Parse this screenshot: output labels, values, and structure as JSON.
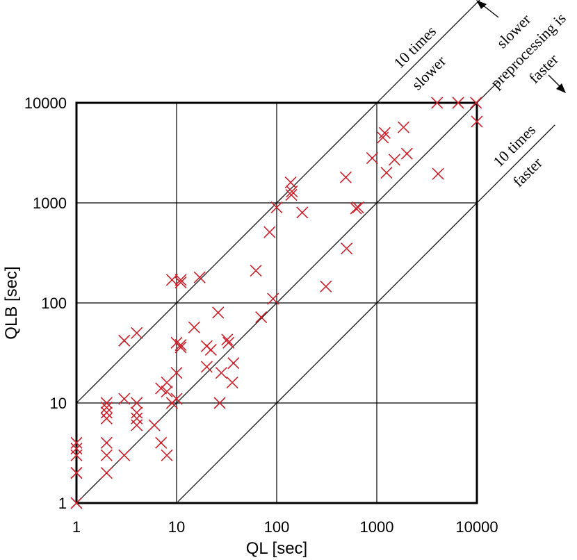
{
  "chart_data": {
    "type": "scatter",
    "title": "",
    "xlabel": "QL [sec]",
    "ylabel": "QLB [sec]",
    "xscale": "log",
    "yscale": "log",
    "xlim": [
      1,
      10000
    ],
    "ylim": [
      1,
      10000
    ],
    "xticks": [
      "1",
      "10",
      "100",
      "1000",
      "10000"
    ],
    "yticks": [
      "1",
      "10",
      "100",
      "1000",
      "10000"
    ],
    "grid": true,
    "marker": "x",
    "marker_color": "#cc1f2a",
    "reference_lines": [
      {
        "factor": 10,
        "labels": [
          "10 times",
          "slower"
        ]
      },
      {
        "factor": 1,
        "labels": []
      },
      {
        "factor": 0.1,
        "labels": [
          "10 times",
          "faster"
        ]
      }
    ],
    "annotation": {
      "upper": "slower",
      "middle": "preprocessing is",
      "lower": "faster"
    },
    "points": [
      [
        1,
        1
      ],
      [
        1,
        2
      ],
      [
        1,
        2
      ],
      [
        1,
        3
      ],
      [
        1,
        3.5
      ],
      [
        1,
        4
      ],
      [
        2,
        2
      ],
      [
        2,
        3
      ],
      [
        2,
        4
      ],
      [
        2,
        7
      ],
      [
        2,
        8
      ],
      [
        2,
        9
      ],
      [
        2,
        10
      ],
      [
        3,
        3
      ],
      [
        3,
        11
      ],
      [
        3,
        42
      ],
      [
        4,
        6
      ],
      [
        4,
        7
      ],
      [
        4,
        8
      ],
      [
        4,
        10
      ],
      [
        4,
        50
      ],
      [
        6,
        6
      ],
      [
        7,
        4
      ],
      [
        7,
        14
      ],
      [
        8,
        3
      ],
      [
        8,
        13
      ],
      [
        8,
        16
      ],
      [
        9,
        10
      ],
      [
        9,
        170
      ],
      [
        10,
        11
      ],
      [
        10,
        20
      ],
      [
        10,
        40
      ],
      [
        11,
        36
      ],
      [
        11,
        38
      ],
      [
        11,
        160
      ],
      [
        11,
        170
      ],
      [
        15,
        57
      ],
      [
        17,
        180
      ],
      [
        20,
        23
      ],
      [
        20,
        37
      ],
      [
        22,
        34
      ],
      [
        26,
        80
      ],
      [
        27,
        10
      ],
      [
        28,
        20
      ],
      [
        32,
        43
      ],
      [
        33,
        40
      ],
      [
        36,
        16
      ],
      [
        37,
        25
      ],
      [
        62,
        210
      ],
      [
        70,
        72
      ],
      [
        85,
        510
      ],
      [
        92,
        110
      ],
      [
        100,
        900
      ],
      [
        138,
        1600
      ],
      [
        140,
        1200
      ],
      [
        142,
        1300
      ],
      [
        180,
        800
      ],
      [
        310,
        146
      ],
      [
        490,
        1800
      ],
      [
        500,
        350
      ],
      [
        620,
        880
      ],
      [
        650,
        900
      ],
      [
        900,
        2800
      ],
      [
        1150,
        4500
      ],
      [
        1200,
        5000
      ],
      [
        1250,
        2000
      ],
      [
        1500,
        2700
      ],
      [
        1850,
        5700
      ],
      [
        2000,
        3100
      ],
      [
        4000,
        10000
      ],
      [
        4100,
        1950
      ],
      [
        6500,
        10000
      ],
      [
        9800,
        10000
      ],
      [
        10000,
        6500
      ]
    ]
  }
}
